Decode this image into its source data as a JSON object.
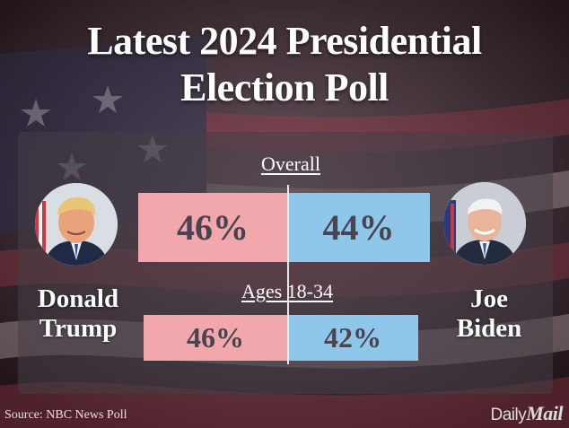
{
  "title": {
    "line1": "Latest 2024 Presidential",
    "line2": "Election Poll"
  },
  "candidates": {
    "left": {
      "name_line1": "Donald",
      "name_line2": "Trump",
      "color": "#f2a7ac"
    },
    "right": {
      "name_line1": "Joe",
      "name_line2": "Biden",
      "color": "#8ec7ea"
    }
  },
  "chart_data": {
    "type": "bar",
    "orientation": "horizontal-diverging",
    "categories": [
      "Overall",
      "Ages 18-34"
    ],
    "series": [
      {
        "name": "Donald Trump",
        "values": [
          46,
          46
        ],
        "labels": [
          "46%",
          "46%"
        ],
        "color": "#f2a7ac"
      },
      {
        "name": "Joe Biden",
        "values": [
          44,
          42
        ],
        "labels": [
          "44%",
          "42%"
        ],
        "color": "#8ec7ea"
      }
    ],
    "title": "Latest 2024 Presidential Election Poll",
    "xlabel": "",
    "ylabel": "",
    "unit": "%",
    "grid": false
  },
  "source": "Source: NBC News Poll",
  "logo": {
    "part1": "Daily",
    "part2": "Mail"
  }
}
